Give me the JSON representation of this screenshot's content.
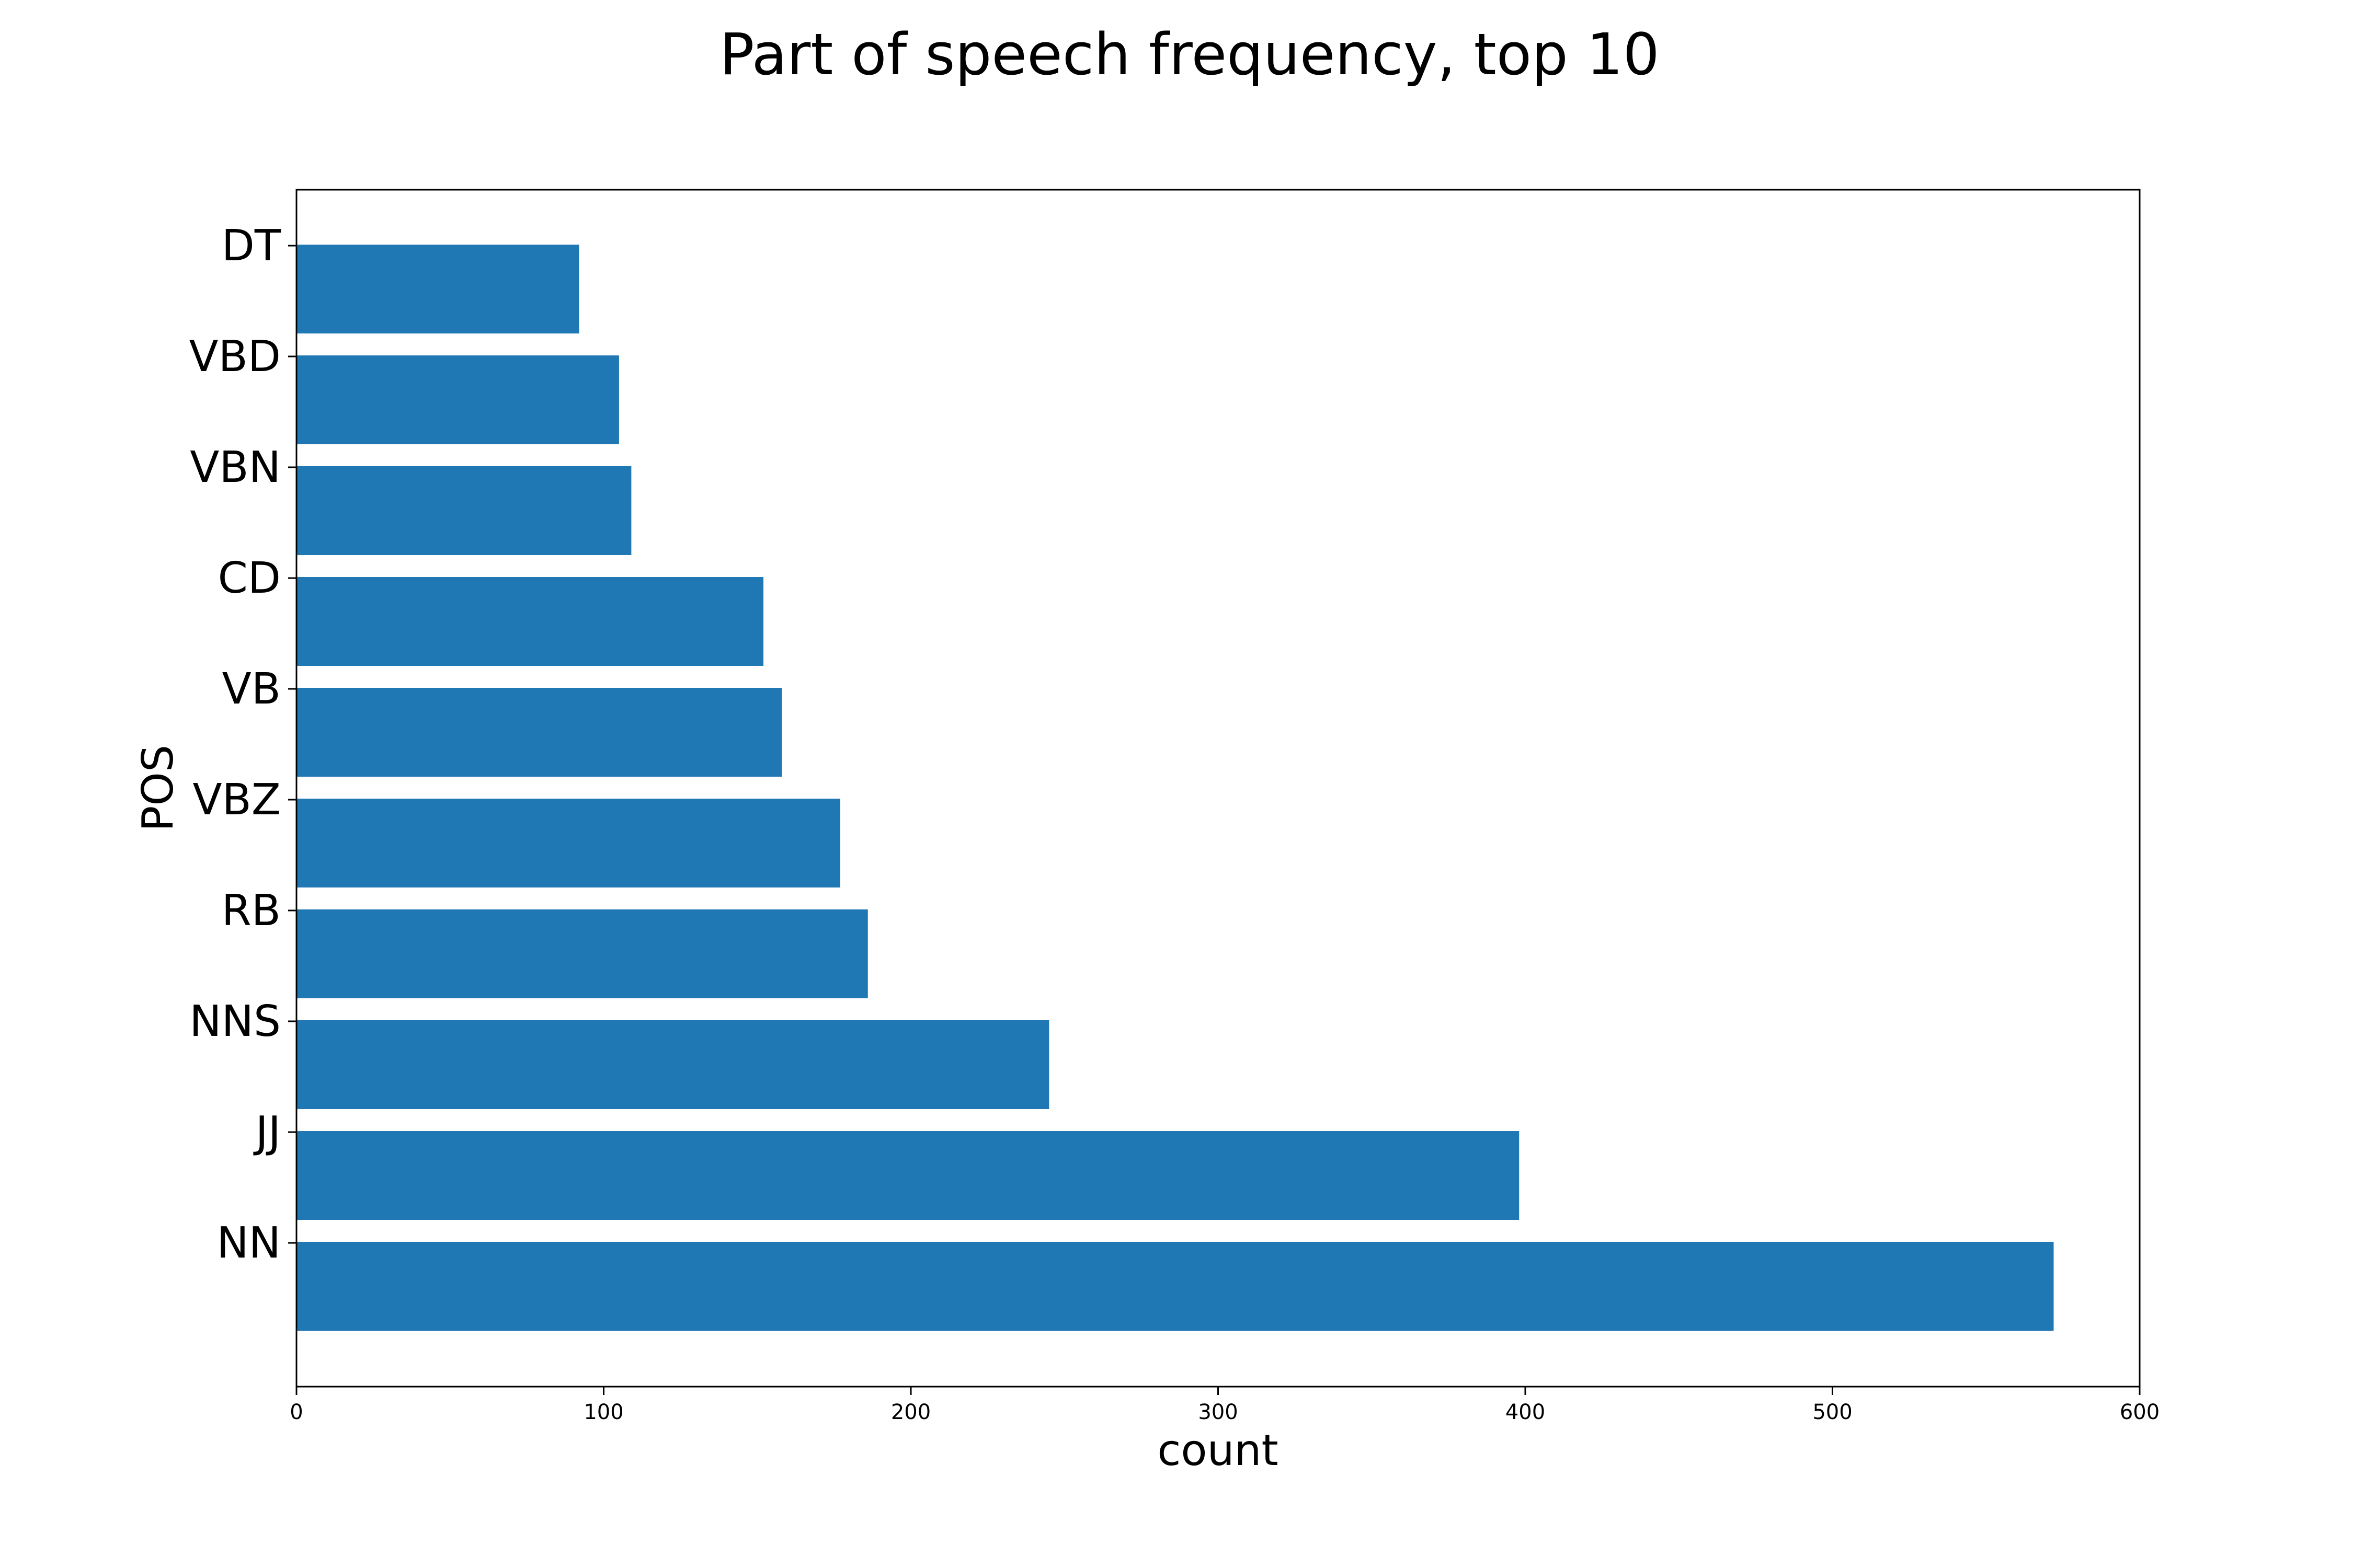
{
  "chart_data": {
    "type": "bar",
    "orientation": "horizontal",
    "title": "Part of speech frequency, top 10",
    "xlabel": "count",
    "ylabel": "POS",
    "categories": [
      "NN",
      "JJ",
      "NNS",
      "RB",
      "VBZ",
      "VB",
      "CD",
      "VBN",
      "VBD",
      "DT"
    ],
    "values": [
      572,
      398,
      245,
      186,
      177,
      158,
      152,
      109,
      105,
      92
    ],
    "xlim": [
      0,
      600
    ],
    "xticks": [
      "0",
      "100",
      "200",
      "300",
      "400",
      "500",
      "600"
    ],
    "bar_color": "#1f77b4",
    "grid": false,
    "legend": "none"
  }
}
